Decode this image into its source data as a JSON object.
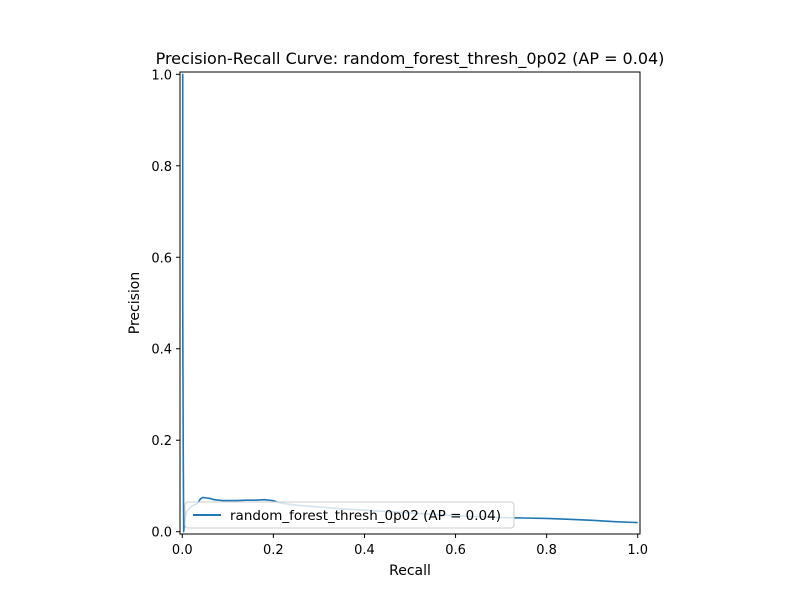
{
  "chart_data": {
    "type": "line",
    "title": "Precision-Recall Curve: random_forest_thresh_0p02 (AP = 0.04)",
    "xlabel": "Recall",
    "ylabel": "Precision",
    "xlim": [
      -0.005,
      1.005
    ],
    "ylim": [
      -0.005,
      1.005
    ],
    "xticks": [
      0.0,
      0.2,
      0.4,
      0.6,
      0.8,
      1.0
    ],
    "xtick_labels": [
      "0.0",
      "0.2",
      "0.4",
      "0.6",
      "0.8",
      "1.0"
    ],
    "yticks": [
      0.0,
      0.2,
      0.4,
      0.6,
      0.8,
      1.0
    ],
    "ytick_labels": [
      "0.0",
      "0.2",
      "0.4",
      "0.6",
      "0.8",
      "1.0"
    ],
    "grid": false,
    "legend_position": "lower-right",
    "color": "#1f77b4",
    "series": [
      {
        "name": "random_forest_thresh_0p02 (AP = 0.04)",
        "x": [
          0.0,
          0.001,
          0.001,
          0.002,
          0.003,
          0.003,
          0.006,
          0.01,
          0.015,
          0.02,
          0.025,
          0.03,
          0.035,
          0.04,
          0.045,
          0.05,
          0.06,
          0.07,
          0.08,
          0.09,
          0.1,
          0.12,
          0.14,
          0.16,
          0.18,
          0.2,
          0.21,
          0.22,
          0.25,
          0.3,
          0.35,
          0.4,
          0.45,
          0.5,
          0.55,
          0.6,
          0.65,
          0.7,
          0.75,
          0.8,
          0.85,
          0.9,
          0.95,
          1.0
        ],
        "y": [
          1.0,
          1.0,
          0.5,
          0.2,
          0.02,
          0.0,
          0.03,
          0.045,
          0.05,
          0.055,
          0.058,
          0.06,
          0.064,
          0.072,
          0.075,
          0.074,
          0.073,
          0.07,
          0.069,
          0.068,
          0.068,
          0.068,
          0.069,
          0.069,
          0.07,
          0.068,
          0.064,
          0.062,
          0.058,
          0.054,
          0.05,
          0.047,
          0.044,
          0.041,
          0.038,
          0.035,
          0.033,
          0.031,
          0.03,
          0.029,
          0.027,
          0.025,
          0.022,
          0.02
        ]
      }
    ]
  }
}
